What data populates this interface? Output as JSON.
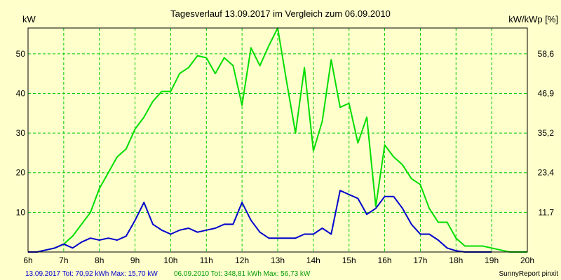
{
  "chart_data": {
    "type": "line",
    "title": "Tagesverlauf 13.09.2017 im Vergleich zum 06.09.2010",
    "ylabel_left": "kW",
    "ylabel_right": "kW/kWp [%]",
    "x_ticks": [
      "6h",
      "7h",
      "8h",
      "9h",
      "10h",
      "11h",
      "12h",
      "13h",
      "14h",
      "15h",
      "16h",
      "17h",
      "18h",
      "19h",
      "20h"
    ],
    "x_range": [
      6,
      20
    ],
    "y_left_ticks": [
      10,
      20,
      30,
      40,
      50
    ],
    "y_left_range": [
      0,
      56.5
    ],
    "y_right_ticks": [
      "11,7",
      "23,4",
      "35,2",
      "46,9",
      "58,6"
    ],
    "grid": true,
    "background": "#ffffcc",
    "plot_border_color": "#000000",
    "grid_color": "#00cc00",
    "series": [
      {
        "name": "13.09.2017",
        "color": "#0000cc",
        "x": [
          6,
          6.25,
          6.5,
          6.75,
          7,
          7.25,
          7.5,
          7.75,
          8,
          8.25,
          8.5,
          8.75,
          9,
          9.25,
          9.5,
          9.75,
          10,
          10.25,
          10.5,
          10.75,
          11,
          11.25,
          11.5,
          11.75,
          12,
          12.25,
          12.5,
          12.75,
          13,
          13.25,
          13.5,
          13.75,
          14,
          14.25,
          14.5,
          14.75,
          15,
          15.25,
          15.5,
          15.75,
          16,
          16.25,
          16.5,
          16.75,
          17,
          17.25,
          17.5,
          17.75,
          18,
          18.25,
          18.5,
          18.75,
          19
        ],
        "values": [
          0,
          0,
          0.5,
          1,
          2,
          1,
          2.5,
          3.5,
          3,
          3.5,
          3,
          4,
          8,
          12.5,
          7,
          5.5,
          4.5,
          5.5,
          6,
          5,
          5.5,
          6,
          7,
          7,
          12.5,
          8,
          5,
          3.5,
          3.5,
          3.5,
          3.5,
          4.5,
          4.5,
          6,
          4.5,
          15.5,
          14.5,
          13.5,
          9.5,
          11,
          14,
          14,
          11,
          7,
          4.5,
          4.5,
          3,
          1,
          0.3,
          0,
          0,
          0,
          0
        ]
      },
      {
        "name": "06.09.2010",
        "color": "#00dd00",
        "x": [
          6,
          6.25,
          6.5,
          6.75,
          7,
          7.25,
          7.5,
          7.75,
          8,
          8.25,
          8.5,
          8.75,
          9,
          9.25,
          9.5,
          9.75,
          10,
          10.25,
          10.5,
          10.75,
          11,
          11.25,
          11.5,
          11.75,
          12,
          12.25,
          12.5,
          12.75,
          13,
          13.25,
          13.5,
          13.75,
          14,
          14.25,
          14.5,
          14.75,
          15,
          15.25,
          15.5,
          15.75,
          16,
          16.25,
          16.5,
          16.75,
          17,
          17.25,
          17.5,
          17.75,
          18,
          18.25,
          18.5,
          18.75,
          19,
          19.25,
          19.5,
          19.75,
          20
        ],
        "values": [
          0,
          0,
          0.5,
          1,
          2,
          4,
          7,
          10,
          16,
          20,
          24,
          26,
          31,
          34,
          38,
          40.5,
          40.5,
          45,
          46.5,
          49.5,
          49,
          45,
          49,
          47,
          37,
          51.5,
          47,
          52,
          56.5,
          43,
          30,
          46.5,
          25.5,
          33,
          48.5,
          36.5,
          37.5,
          27.5,
          34,
          11.5,
          27,
          24,
          22,
          18.5,
          17,
          11,
          7.5,
          7.5,
          3.5,
          1.5,
          1.5,
          1.5,
          1,
          0.5,
          0,
          0,
          0
        ]
      }
    ]
  },
  "footer": {
    "blue_text": "13.09.2017 Tot: 70,92 kWh Max: 15,70 kW",
    "green_text": "06.09.2010 Tot: 348,81 kWh Max: 56,73 kW",
    "brand_text": "SunnyReport pinxit"
  }
}
